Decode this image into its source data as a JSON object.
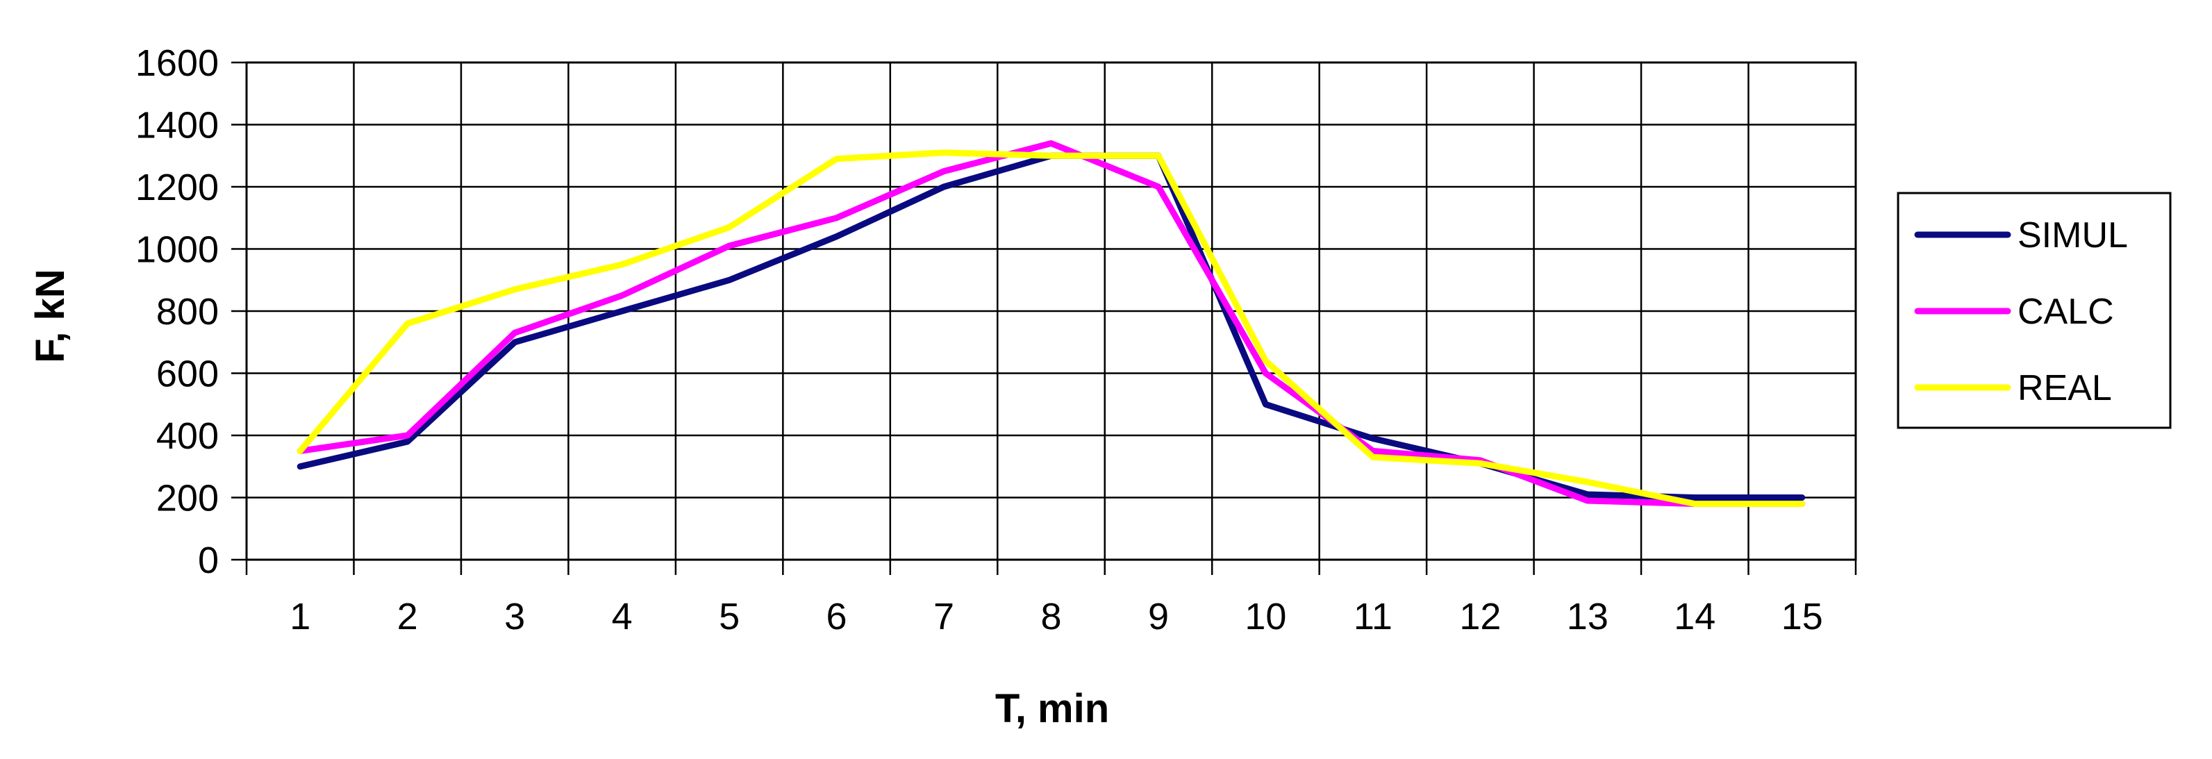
{
  "chart_data": {
    "type": "line",
    "x": [
      1,
      2,
      3,
      4,
      5,
      6,
      7,
      8,
      9,
      10,
      11,
      12,
      13,
      14,
      15
    ],
    "xlabel": "T, min",
    "ylabel": "F, kN",
    "ylim": [
      0,
      1600
    ],
    "yticks": [
      0,
      200,
      400,
      600,
      800,
      1000,
      1200,
      1400,
      1600
    ],
    "grid": true,
    "legend_position": "right",
    "series": [
      {
        "name": "SIMUL",
        "color": "#0a0a80",
        "values": [
          300,
          380,
          700,
          800,
          900,
          1040,
          1200,
          1300,
          1300,
          500,
          390,
          310,
          210,
          200,
          200
        ]
      },
      {
        "name": "CALC",
        "color": "#ff00ff",
        "values": [
          350,
          400,
          730,
          850,
          1010,
          1100,
          1250,
          1340,
          1200,
          600,
          350,
          320,
          190,
          180,
          180
        ]
      },
      {
        "name": "REAL",
        "color": "#ffff00",
        "values": [
          350,
          760,
          870,
          950,
          1070,
          1290,
          1310,
          1300,
          1300,
          640,
          330,
          310,
          250,
          180,
          180
        ]
      }
    ]
  }
}
